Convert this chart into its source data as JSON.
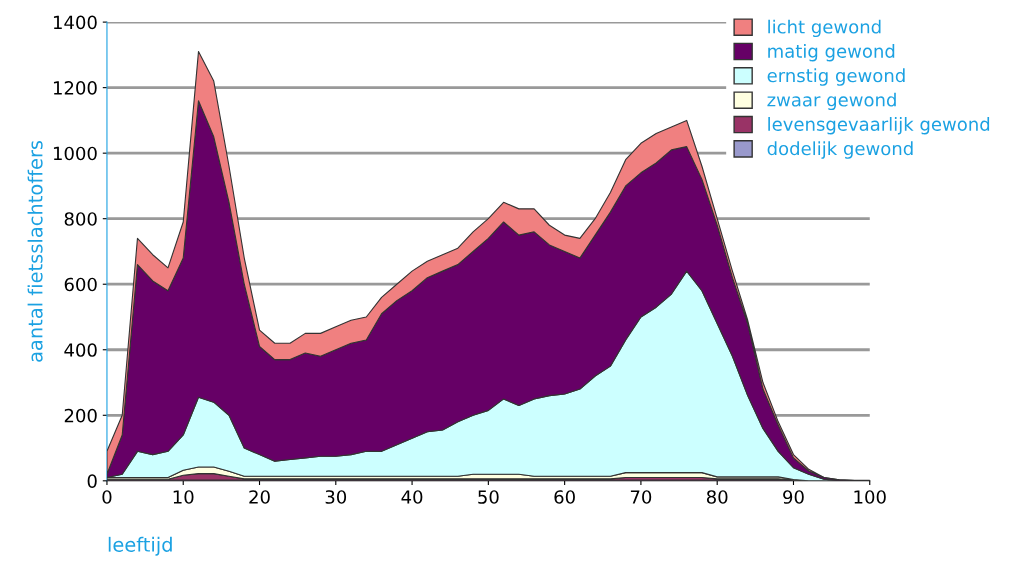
{
  "chart_data": {
    "type": "area",
    "stacked": true,
    "xlabel": "leeftijd",
    "ylabel": "aantal fietsslachtoffers",
    "x": [
      0,
      2,
      4,
      6,
      8,
      10,
      12,
      14,
      16,
      18,
      20,
      22,
      24,
      26,
      28,
      30,
      32,
      34,
      36,
      38,
      40,
      42,
      44,
      46,
      48,
      50,
      52,
      54,
      56,
      58,
      60,
      62,
      64,
      66,
      68,
      70,
      72,
      74,
      76,
      78,
      80,
      82,
      84,
      86,
      88,
      90,
      92,
      94,
      96,
      98,
      100
    ],
    "xlim": [
      0,
      100
    ],
    "xticks": [
      0,
      10,
      20,
      30,
      40,
      50,
      60,
      70,
      80,
      90,
      100
    ],
    "ylim": [
      0,
      1400
    ],
    "yticks": [
      0,
      200,
      400,
      600,
      800,
      1000,
      1200,
      1400
    ],
    "grid": "y",
    "legend": "top right",
    "series": [
      {
        "name": "dodelijk gewond",
        "color": "#9999cc",
        "values": [
          2,
          2,
          2,
          2,
          2,
          2,
          2,
          2,
          2,
          2,
          2,
          2,
          2,
          2,
          2,
          2,
          2,
          2,
          2,
          2,
          2,
          2,
          2,
          2,
          2,
          2,
          2,
          2,
          2,
          2,
          2,
          2,
          2,
          2,
          2,
          2,
          2,
          2,
          2,
          2,
          2,
          2,
          2,
          2,
          2,
          2,
          0,
          0,
          0,
          0,
          0
        ]
      },
      {
        "name": "levensgevaarlijk gewond",
        "color": "#993366",
        "values": [
          3,
          3,
          3,
          3,
          3,
          15,
          20,
          20,
          12,
          4,
          4,
          4,
          4,
          4,
          4,
          4,
          4,
          4,
          4,
          4,
          4,
          4,
          4,
          4,
          4,
          4,
          4,
          4,
          4,
          4,
          4,
          4,
          4,
          4,
          8,
          8,
          8,
          8,
          8,
          8,
          4,
          4,
          4,
          4,
          4,
          0,
          0,
          0,
          0,
          0,
          0
        ]
      },
      {
        "name": "zwaar gewond",
        "color": "#ffffe0",
        "values": [
          5,
          5,
          5,
          5,
          5,
          15,
          20,
          20,
          15,
          8,
          8,
          8,
          8,
          8,
          8,
          8,
          8,
          8,
          8,
          8,
          8,
          8,
          8,
          8,
          14,
          14,
          14,
          14,
          8,
          8,
          8,
          8,
          8,
          8,
          15,
          15,
          15,
          15,
          15,
          15,
          6,
          6,
          6,
          6,
          6,
          2,
          0,
          0,
          0,
          0,
          0
        ]
      },
      {
        "name": "ernstig gewond",
        "color": "#ccffff",
        "values": [
          0,
          10,
          80,
          70,
          80,
          108,
          213,
          198,
          171,
          86,
          66,
          46,
          51,
          56,
          61,
          61,
          66,
          76,
          76,
          96,
          116,
          136,
          141,
          166,
          180,
          195,
          230,
          210,
          236,
          246,
          251,
          266,
          306,
          336,
          405,
          475,
          505,
          545,
          615,
          555,
          468,
          368,
          248,
          148,
          78,
          36,
          20,
          5,
          0,
          0,
          0
        ]
      },
      {
        "name": "matig gewond",
        "color": "#660066",
        "values": [
          10,
          120,
          570,
          530,
          490,
          540,
          905,
          810,
          650,
          500,
          330,
          310,
          305,
          320,
          305,
          325,
          340,
          340,
          420,
          440,
          450,
          470,
          485,
          480,
          500,
          525,
          540,
          520,
          510,
          460,
          435,
          400,
          430,
          470,
          470,
          440,
          440,
          440,
          380,
          340,
          300,
          240,
          220,
          120,
          80,
          30,
          10,
          5,
          3,
          1,
          0
        ]
      },
      {
        "name": "licht gewond",
        "color": "#f08080",
        "values": [
          70,
          60,
          80,
          80,
          70,
          110,
          150,
          170,
          110,
          80,
          50,
          50,
          50,
          60,
          70,
          70,
          70,
          70,
          50,
          50,
          60,
          50,
          50,
          50,
          60,
          60,
          60,
          80,
          70,
          60,
          50,
          60,
          50,
          60,
          80,
          90,
          90,
          70,
          80,
          40,
          20,
          20,
          10,
          20,
          10,
          10,
          5,
          0,
          0,
          0,
          0
        ]
      }
    ]
  }
}
